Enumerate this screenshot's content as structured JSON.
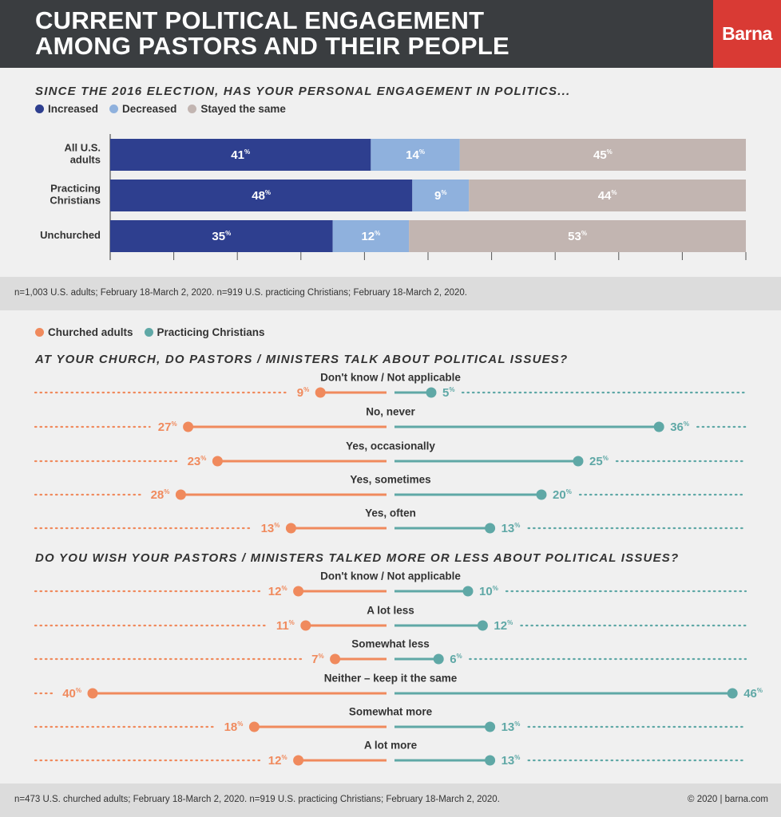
{
  "header": {
    "title": "CURRENT POLITICAL ENGAGEMENT\nAMONG PASTORS AND THEIR PEOPLE",
    "logo": "Barna"
  },
  "colors": {
    "increased": "#2e3f8f",
    "decreased": "#8fb1dd",
    "same": "#c2b5b1",
    "churched": "#f08a5d",
    "practicing": "#5fa8a6"
  },
  "chart_data": [
    {
      "type": "bar",
      "orientation": "horizontal",
      "stacked": true,
      "title": "SINCE THE 2016 ELECTION, HAS YOUR PERSONAL ENGAGEMENT IN POLITICS...",
      "categories": [
        "All U.S. adults",
        "Practicing Christians",
        "Unchurched"
      ],
      "series": [
        {
          "name": "Increased",
          "values": [
            41,
            48,
            35
          ]
        },
        {
          "name": "Decreased",
          "values": [
            14,
            9,
            12
          ]
        },
        {
          "name": "Stayed the same",
          "values": [
            45,
            44,
            53
          ]
        }
      ],
      "value_suffix": "%",
      "legend": "top-left"
    },
    {
      "type": "bar",
      "orientation": "horizontal",
      "diverging": true,
      "title": "AT YOUR CHURCH, DO PASTORS / MINISTERS TALK ABOUT POLITICAL ISSUES?",
      "categories": [
        "Don't know / Not applicable",
        "No, never",
        "Yes, occasionally",
        "Yes, sometimes",
        "Yes, often"
      ],
      "series": [
        {
          "name": "Churched adults",
          "values": [
            9,
            27,
            23,
            28,
            13
          ]
        },
        {
          "name": "Practicing Christians",
          "values": [
            5,
            36,
            25,
            20,
            13
          ]
        }
      ],
      "value_suffix": "%"
    },
    {
      "type": "bar",
      "orientation": "horizontal",
      "diverging": true,
      "title": "DO YOU WISH YOUR PASTORS / MINISTERS TALKED MORE OR LESS ABOUT POLITICAL ISSUES?",
      "categories": [
        "Don't know / Not applicable",
        "A lot less",
        "Somewhat less",
        "Neither – keep it the same",
        "Somewhat more",
        "A lot more"
      ],
      "series": [
        {
          "name": "Churched adults",
          "values": [
            12,
            11,
            7,
            40,
            18,
            12
          ]
        },
        {
          "name": "Practicing Christians",
          "values": [
            10,
            12,
            6,
            46,
            13,
            13
          ]
        }
      ],
      "value_suffix": "%"
    }
  ],
  "section1": {
    "legend": [
      "Increased",
      "Decreased",
      "Stayed the same"
    ],
    "labels": [
      "All U.S.\nadults",
      "Practicing\nChristians",
      "Unchurched"
    ]
  },
  "legend2": [
    "Churched adults",
    "Practicing Christians"
  ],
  "notes": {
    "note1": "n=1,003 U.S. adults; February 18-March 2, 2020. n=919 U.S. practicing Christians; February 18-March 2, 2020.",
    "note2": "n=473 U.S. churched adults; February 18-March 2, 2020. n=919 U.S. practicing Christians; February 18-March 2, 2020.",
    "copyright": "© 2020 | barna.com"
  }
}
